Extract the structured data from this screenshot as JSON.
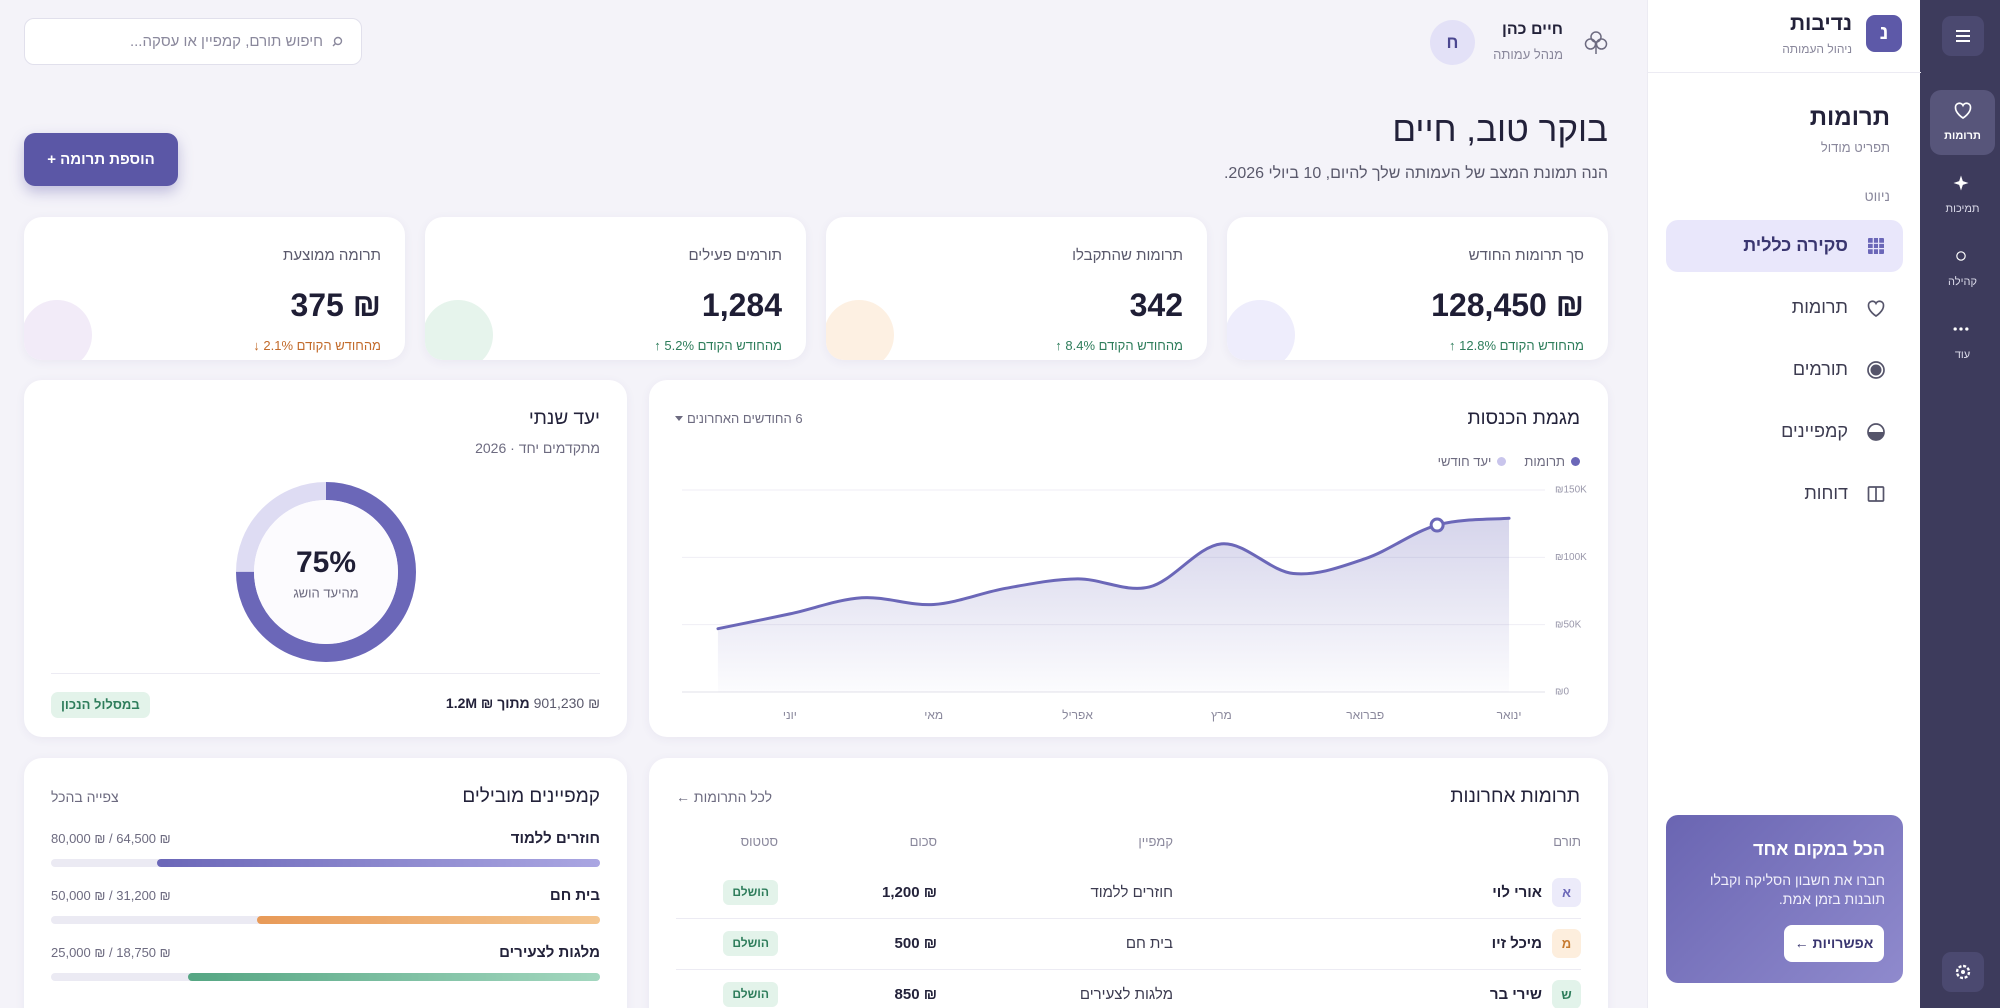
{
  "rail": {
    "items": [
      {
        "label": "תרומות",
        "active": true
      },
      {
        "label": "תמיכות"
      },
      {
        "label": "קהילה"
      },
      {
        "label": "עוד"
      }
    ]
  },
  "brand": {
    "logo": "נ",
    "name": "נדיבות",
    "tagline": "ניהול העמותה"
  },
  "module": {
    "title": "תרומות",
    "subtitle": "תפריט מודול",
    "nav_heading": "ניווט",
    "nav": [
      {
        "label": "סקירה כללית",
        "active": true
      },
      {
        "label": "תרומות"
      },
      {
        "label": "תורמים"
      },
      {
        "label": "קמפיינים"
      },
      {
        "label": "דוחות"
      }
    ]
  },
  "promo": {
    "title": "הכל במקום אחד",
    "text": "חברו את חשבון הסליקה וקבלו תובנות בזמן אמת.",
    "button": "אפשרויות ←"
  },
  "header": {
    "search_placeholder": "חיפוש תורם, קמפיין או עסקה...",
    "user": {
      "initial": "ח",
      "name": "חיים כהן",
      "role": "מנהל עמותה"
    }
  },
  "greeting": {
    "title": "בוקר טוב, חיים",
    "subtitle": "הנה תמונת המצב של העמותה שלך להיום, 10 ביולי 2026.",
    "button": "הוספת תרומה +"
  },
  "kpis": [
    {
      "label": "סך תרומות החודש",
      "value": "₪ 128,450",
      "change": "מהחודש הקודם 12.8% ↑",
      "trend": "up",
      "color": "#eeedfc"
    },
    {
      "label": "תרומות שהתקבלו",
      "value": "342",
      "change": "מהחודש הקודם 8.4% ↑",
      "trend": "up",
      "color": "#fdf0e2"
    },
    {
      "label": "תורמים פעילים",
      "value": "1,284",
      "change": "מהחודש הקודם 5.2% ↑",
      "trend": "up",
      "color": "#e6f4ec"
    },
    {
      "label": "תרומה ממוצעת",
      "value": "₪ 375",
      "change": "מהחודש הקודם 2.1% ↓",
      "trend": "down",
      "color": "#f2ebf8"
    }
  ],
  "chart_data": {
    "type": "area",
    "title": "מגמת הכנסות",
    "range_label": "6 החודשים האחרונים",
    "reverse_x": true,
    "categories": [
      "ינואר",
      null,
      "פברואר",
      null,
      "מרץ",
      null,
      "אפריל",
      null,
      "מאי",
      null,
      "יוני",
      null
    ],
    "series": [
      {
        "name": "תרומות",
        "color": "#6b67b8",
        "values": [
          129000,
          124000,
          99000,
          88000,
          110000,
          78000,
          84000,
          77000,
          65000,
          70000,
          58000,
          47000
        ]
      },
      {
        "name": "יעד חודשי",
        "color": "#c9c5ec",
        "values": [
          null,
          null,
          null,
          null,
          null,
          null,
          null,
          null,
          null,
          null,
          null,
          null
        ]
      }
    ],
    "highlighted_point": 1,
    "ylim": [
      0,
      150000
    ],
    "yticks": [
      {
        "value": 0,
        "label": "₪0"
      },
      {
        "value": 50000,
        "label": "₪50K"
      },
      {
        "value": 100000,
        "label": "₪100K"
      },
      {
        "value": 150000,
        "label": "₪150K"
      }
    ],
    "grid": true
  },
  "goal": {
    "title": "יעד שנתי",
    "subtitle": "מתקדמים יחד · 2026",
    "percent": 75,
    "percent_label": "75%",
    "caption": "מהיעד הושג",
    "raised": "₪ 901,230",
    "of": "מתוך ₪ 1.2M",
    "status": "במסלול הנכון",
    "color": "#6b67b8",
    "track_color": "#dedcf3"
  },
  "recent": {
    "title": "תרומות אחרונות",
    "link": "לכל התרומות ←",
    "columns": [
      "תורם",
      "קמפיין",
      "סכום",
      "סטטוס"
    ],
    "rows": [
      {
        "initial": "א",
        "donor": "אורי לוי",
        "campaign": "חוזרים ללמוד",
        "amount": "₪ 1,200",
        "status": "הושלם",
        "avatar_bg": "#ecebfa",
        "avatar_color": "#6b67b8"
      },
      {
        "initial": "מ",
        "donor": "מיכל זיו",
        "campaign": "בית חם",
        "amount": "₪ 500",
        "status": "הושלם",
        "avatar_bg": "#fdeedd",
        "avatar_color": "#c77a2f"
      },
      {
        "initial": "ש",
        "donor": "שירי בר",
        "campaign": "מלגות לצעירים",
        "amount": "₪ 850",
        "status": "הושלם",
        "avatar_bg": "#e2f3ea",
        "avatar_color": "#2e7d5b"
      }
    ]
  },
  "campaigns": {
    "title": "קמפיינים מובילים",
    "link": "צפייה בהכל",
    "items": [
      {
        "name": "חוזרים ללמוד",
        "raised": 64500,
        "goal": 80000,
        "amount_label": "₪ 64,500 / ₪ 80,000",
        "color": "#6b67b8",
        "color2": "#aaa6e2"
      },
      {
        "name": "בית חם",
        "raised": 31200,
        "goal": 50000,
        "amount_label": "₪ 31,200 / ₪ 50,000",
        "color": "#e89a58",
        "color2": "#f4c690"
      },
      {
        "name": "מלגות לצעירים",
        "raised": 18750,
        "goal": 25000,
        "amount_label": "₪ 18,750 / ₪ 25,000",
        "color": "#55a683",
        "color2": "#a3d7bf"
      }
    ]
  }
}
